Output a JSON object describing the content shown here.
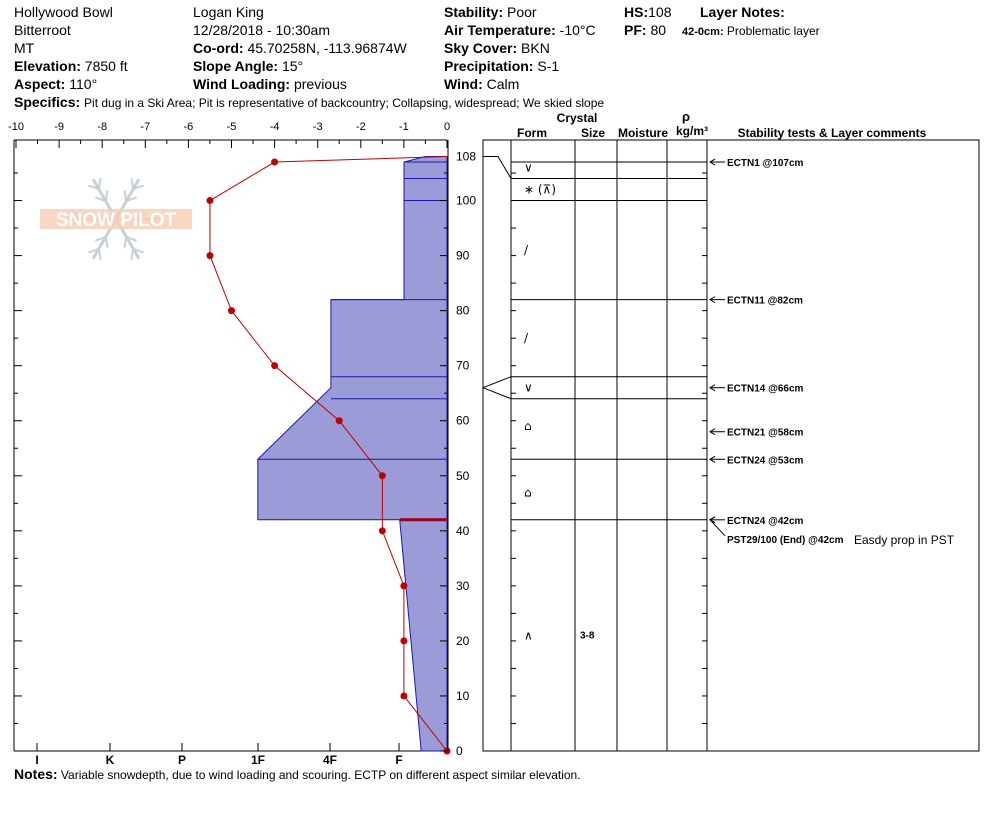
{
  "header": {
    "location": "Hollywood Bowl",
    "range": "Bitterroot",
    "state": "MT",
    "elevation_label": "Elevation:",
    "elevation": "7850 ft",
    "aspect_label": "Aspect:",
    "aspect": "110°",
    "observer": "Logan King",
    "datetime": "12/28/2018 - 10:30am",
    "coord_label": "Co-ord:",
    "coord": "45.70258N, -113.96874W",
    "slope_label": "Slope Angle:",
    "slope": "15°",
    "wind_loading_label": "Wind Loading:",
    "wind_loading": "previous",
    "stability_label": "Stability:",
    "stability": "Poor",
    "air_temp_label": "Air Temperature:",
    "air_temp": "-10°C",
    "sky_label": "Sky Cover:",
    "sky": "BKN",
    "precip_label": "Precipitation:",
    "precip": "S-1",
    "wind_label": "Wind:",
    "wind": "Calm",
    "hs_label": "HS:",
    "hs": "108",
    "pf_label": "PF:",
    "pf": "80",
    "layer_notes_label": "Layer Notes:",
    "layer_note_range": "42-0cm:",
    "layer_note_text": "Problematic layer",
    "specifics_label": "Specifics:",
    "specifics": "Pit dug in a Ski Area; Pit is representative of backcountry; Collapsing, widespread; We skied slope"
  },
  "logo_text": "SNOW PILOT",
  "notes_label": "Notes:",
  "notes": "Variable snowdepth, due to wind loading and scouring. ECTP on different aspect similar elevation.",
  "colors": {
    "hardness_fill": "#9b9bd7",
    "hardness_edge": "#1a1aa8",
    "temp": "#c00000",
    "weak_layer": "#a0001e"
  },
  "columns": {
    "crystal": "Crystal",
    "form": "Form",
    "size": "Size",
    "moisture": "Moisture",
    "rho": "ρ",
    "density_unit": "kg/m³",
    "comments": "Stability tests & Layer comments"
  },
  "chart_data": {
    "type": "snow-profile",
    "temperature_axis": {
      "ticks": [
        "-10",
        "-9",
        "-8",
        "-7",
        "-6",
        "-5",
        "-4",
        "-3",
        "-2",
        "-1",
        "0"
      ],
      "range": [
        -10,
        0
      ]
    },
    "hardness_axis": {
      "ticks": [
        "I",
        "K",
        "P",
        "1F",
        "4F",
        "F"
      ]
    },
    "depth_axis": {
      "ticks": [
        "108",
        "100",
        "90",
        "80",
        "70",
        "60",
        "50",
        "40",
        "30",
        "20",
        "10",
        "0"
      ],
      "range": [
        0,
        108
      ]
    },
    "temperature_profile": [
      {
        "depth": 108,
        "temp": 0
      },
      {
        "depth": 107,
        "temp": -4
      },
      {
        "depth": 100,
        "temp": -5.5
      },
      {
        "depth": 90,
        "temp": -5.5
      },
      {
        "depth": 80,
        "temp": -5
      },
      {
        "depth": 70,
        "temp": -4
      },
      {
        "depth": 60,
        "temp": -2.5
      },
      {
        "depth": 50,
        "temp": -1.5
      },
      {
        "depth": 40,
        "temp": -1.5
      },
      {
        "depth": 30,
        "temp": -1
      },
      {
        "depth": 20,
        "temp": -1
      },
      {
        "depth": 10,
        "temp": -1
      },
      {
        "depth": 0,
        "temp": 0
      }
    ],
    "hardness_profile": [
      {
        "depth": 108,
        "hardness_index": 0.5
      },
      {
        "depth": 107,
        "hardness_index": 1
      },
      {
        "depth": 82,
        "hardness_index": 1
      },
      {
        "depth": 82,
        "hardness_index": 2.7
      },
      {
        "depth": 66,
        "hardness_index": 2.7
      },
      {
        "depth": 53,
        "hardness_index": 4.4
      },
      {
        "depth": 42,
        "hardness_index": 4.4
      },
      {
        "depth": 42,
        "hardness_index": 1.1
      },
      {
        "depth": 0,
        "hardness_index": 0.6
      }
    ],
    "layer_boundaries": [
      107,
      104,
      100,
      82,
      68,
      64,
      53,
      42
    ],
    "weak_layer_depth": 42,
    "crystal_forms": [
      {
        "depth": 106,
        "symbol": "∨"
      },
      {
        "depth": 102,
        "symbol": "∗ (⊼)"
      },
      {
        "depth": 91,
        "symbol": "/"
      },
      {
        "depth": 75,
        "symbol": "/"
      },
      {
        "depth": 66,
        "symbol": "∨"
      },
      {
        "depth": 59,
        "symbol": "⌂"
      },
      {
        "depth": 47,
        "symbol": "⌂"
      },
      {
        "depth": 21,
        "symbol": "∧",
        "size": "3-8"
      }
    ],
    "stability_tests": [
      {
        "depth": 107,
        "label": "ECTN1 @107cm"
      },
      {
        "depth": 82,
        "label": "ECTN11 @82cm"
      },
      {
        "depth": 66,
        "label": "ECTN14 @66cm"
      },
      {
        "depth": 58,
        "label": "ECTN21 @58cm"
      },
      {
        "depth": 53,
        "label": "ECTN24 @53cm"
      },
      {
        "depth": 42,
        "label": "ECTN24 @42cm"
      },
      {
        "depth": 42,
        "label": "PST29/100 (End) @42cm",
        "comment": "Easdy prop in PST"
      }
    ]
  }
}
